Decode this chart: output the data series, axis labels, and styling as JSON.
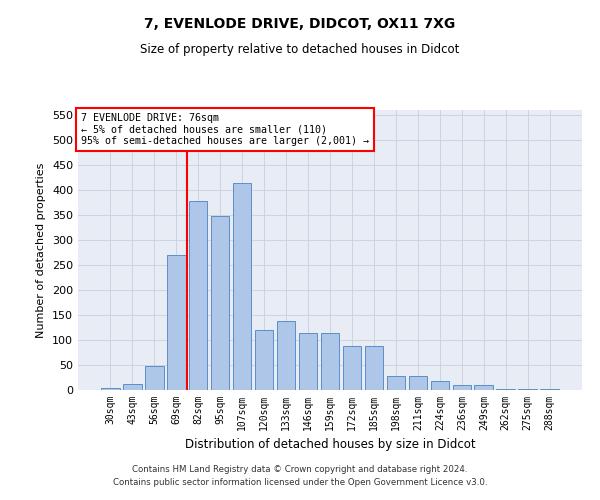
{
  "title1": "7, EVENLODE DRIVE, DIDCOT, OX11 7XG",
  "title2": "Size of property relative to detached houses in Didcot",
  "xlabel": "Distribution of detached houses by size in Didcot",
  "ylabel": "Number of detached properties",
  "categories": [
    "30sqm",
    "43sqm",
    "56sqm",
    "69sqm",
    "82sqm",
    "95sqm",
    "107sqm",
    "120sqm",
    "133sqm",
    "146sqm",
    "159sqm",
    "172sqm",
    "185sqm",
    "198sqm",
    "211sqm",
    "224sqm",
    "236sqm",
    "249sqm",
    "262sqm",
    "275sqm",
    "288sqm"
  ],
  "values": [
    5,
    12,
    48,
    270,
    378,
    348,
    415,
    120,
    138,
    115,
    115,
    88,
    88,
    28,
    28,
    18,
    10,
    10,
    3,
    2,
    2
  ],
  "bar_color": "#aec6e8",
  "bar_edge_color": "#5b8fc9",
  "vline_x": 3.5,
  "vline_color": "red",
  "annotation_lines": [
    "7 EVENLODE DRIVE: 76sqm",
    "← 5% of detached houses are smaller (110)",
    "95% of semi-detached houses are larger (2,001) →"
  ],
  "annotation_box_color": "white",
  "annotation_box_edge": "red",
  "ylim": [
    0,
    560
  ],
  "yticks": [
    0,
    50,
    100,
    150,
    200,
    250,
    300,
    350,
    400,
    450,
    500,
    550
  ],
  "grid_color": "#c8d0dc",
  "bg_color": "#e8ecf5",
  "footer1": "Contains HM Land Registry data © Crown copyright and database right 2024.",
  "footer2": "Contains public sector information licensed under the Open Government Licence v3.0."
}
